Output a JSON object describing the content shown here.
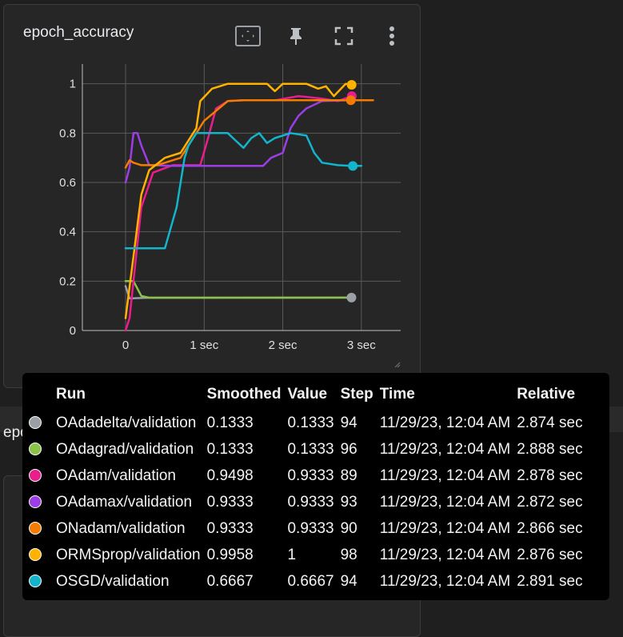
{
  "top_card": {
    "title": "epoch_accuracy",
    "tools": [
      "fit-domain-icon",
      "pin-icon",
      "fullscreen-icon",
      "more-vert-icon"
    ]
  },
  "bottom_card": {
    "title_strip": "epoch_loss",
    "title_card": "epoch_loss"
  },
  "chart_data": {
    "type": "line",
    "title": "epoch_accuracy",
    "xlabel": "",
    "ylabel": "",
    "xlim": [
      -0.55,
      3.5
    ],
    "ylim": [
      0,
      1.08
    ],
    "x_ticks": [
      0,
      1,
      2,
      3
    ],
    "x_tick_labels": [
      "0",
      "1 sec",
      "2 sec",
      "3 sec"
    ],
    "y_ticks": [
      0,
      0.2,
      0.4,
      0.6,
      0.8,
      1
    ],
    "y_tick_labels": [
      "0",
      "0.2",
      "0.4",
      "0.6",
      "0.8",
      "1"
    ],
    "grid": true,
    "series": [
      {
        "name": "OAdadelta/validation",
        "color": "#9aa0a6",
        "points": [
          [
            0,
            0.18
          ],
          [
            0.05,
            0.13
          ],
          [
            0.3,
            0.133
          ],
          [
            1,
            0.133
          ],
          [
            2,
            0.133
          ],
          [
            2.874,
            0.1333
          ]
        ]
      },
      {
        "name": "OAdagrad/validation",
        "color": "#8bc34a",
        "points": [
          [
            0,
            0.2
          ],
          [
            0.1,
            0.2
          ],
          [
            0.2,
            0.14
          ],
          [
            0.3,
            0.133
          ],
          [
            1,
            0.133
          ],
          [
            2.888,
            0.1333
          ]
        ]
      },
      {
        "name": "OAdam/validation",
        "color": "#e91e8c",
        "points": [
          [
            0,
            0.0
          ],
          [
            0.05,
            0.05
          ],
          [
            0.1,
            0.2
          ],
          [
            0.2,
            0.5
          ],
          [
            0.35,
            0.64
          ],
          [
            0.6,
            0.67
          ],
          [
            0.95,
            0.67
          ],
          [
            1.05,
            0.78
          ],
          [
            1.15,
            0.9
          ],
          [
            1.3,
            0.93
          ],
          [
            1.5,
            0.933
          ],
          [
            1.9,
            0.933
          ],
          [
            2.2,
            0.95
          ],
          [
            2.5,
            0.94
          ],
          [
            2.7,
            0.93
          ],
          [
            2.878,
            0.9498
          ]
        ]
      },
      {
        "name": "OAdamax/validation",
        "color": "#9c3de6",
        "points": [
          [
            0,
            0.6
          ],
          [
            0.05,
            0.66
          ],
          [
            0.1,
            0.8
          ],
          [
            0.15,
            0.8
          ],
          [
            0.2,
            0.75
          ],
          [
            0.3,
            0.67
          ],
          [
            0.6,
            0.667
          ],
          [
            1.0,
            0.667
          ],
          [
            1.5,
            0.667
          ],
          [
            1.75,
            0.667
          ],
          [
            1.85,
            0.7
          ],
          [
            2.0,
            0.72
          ],
          [
            2.1,
            0.82
          ],
          [
            2.2,
            0.87
          ],
          [
            2.3,
            0.9
          ],
          [
            2.5,
            0.93
          ],
          [
            2.872,
            0.9333
          ]
        ]
      },
      {
        "name": "ONadam/validation",
        "color": "#f57c00",
        "points": [
          [
            0,
            0.66
          ],
          [
            0.05,
            0.69
          ],
          [
            0.1,
            0.68
          ],
          [
            0.2,
            0.67
          ],
          [
            0.4,
            0.67
          ],
          [
            0.7,
            0.7
          ],
          [
            1.0,
            0.85
          ],
          [
            1.3,
            0.93
          ],
          [
            1.5,
            0.933
          ],
          [
            2.0,
            0.933
          ],
          [
            2.5,
            0.933
          ],
          [
            2.866,
            0.9333
          ],
          [
            3.15,
            0.933
          ]
        ]
      },
      {
        "name": "ORMSprop/validation",
        "color": "#ffb300",
        "points": [
          [
            0,
            0.05
          ],
          [
            0.1,
            0.3
          ],
          [
            0.2,
            0.55
          ],
          [
            0.3,
            0.65
          ],
          [
            0.5,
            0.7
          ],
          [
            0.7,
            0.72
          ],
          [
            0.9,
            0.82
          ],
          [
            0.95,
            0.93
          ],
          [
            1.1,
            0.98
          ],
          [
            1.3,
            1.0
          ],
          [
            1.8,
            1.0
          ],
          [
            1.9,
            0.97
          ],
          [
            2.0,
            1.0
          ],
          [
            2.3,
            1.0
          ],
          [
            2.45,
            0.98
          ],
          [
            2.55,
            0.99
          ],
          [
            2.65,
            0.95
          ],
          [
            2.8,
            1.0
          ],
          [
            2.876,
            0.9958
          ]
        ]
      },
      {
        "name": "OSGD/validation",
        "color": "#12b5cb",
        "points": [
          [
            0,
            0.333
          ],
          [
            0.5,
            0.333
          ],
          [
            0.65,
            0.5
          ],
          [
            0.75,
            0.7
          ],
          [
            0.8,
            0.75
          ],
          [
            0.9,
            0.8
          ],
          [
            1.3,
            0.8
          ],
          [
            1.4,
            0.77
          ],
          [
            1.5,
            0.74
          ],
          [
            1.6,
            0.78
          ],
          [
            1.7,
            0.8
          ],
          [
            1.8,
            0.76
          ],
          [
            1.9,
            0.78
          ],
          [
            2.1,
            0.8
          ],
          [
            2.3,
            0.79
          ],
          [
            2.4,
            0.72
          ],
          [
            2.5,
            0.68
          ],
          [
            2.7,
            0.67
          ],
          [
            2.891,
            0.6667
          ],
          [
            3.0,
            0.667
          ]
        ]
      }
    ],
    "end_markers": [
      {
        "series": "OAdadelta/validation",
        "x": 2.874,
        "y": 0.1333
      },
      {
        "series": "OAdam/validation",
        "x": 2.878,
        "y": 0.9498
      },
      {
        "series": "ONadam/validation",
        "x": 2.866,
        "y": 0.9333
      },
      {
        "series": "ORMSprop/validation",
        "x": 2.876,
        "y": 0.9958
      },
      {
        "series": "OSGD/validation",
        "x": 2.891,
        "y": 0.6667
      }
    ]
  },
  "tooltip": {
    "headers": {
      "run": "Run",
      "smoothed": "Smoothed",
      "value": "Value",
      "step": "Step",
      "time": "Time",
      "relative": "Relative"
    },
    "rows": [
      {
        "color": "#9aa0a6",
        "run": "OAdadelta/validation",
        "smoothed": "0.1333",
        "value": "0.1333",
        "step": "94",
        "time": "11/29/23, 12:04 AM",
        "relative": "2.874 sec"
      },
      {
        "color": "#8bc34a",
        "run": "OAdagrad/validation",
        "smoothed": "0.1333",
        "value": "0.1333",
        "step": "96",
        "time": "11/29/23, 12:04 AM",
        "relative": "2.888 sec"
      },
      {
        "color": "#e91e8c",
        "run": "OAdam/validation",
        "smoothed": "0.9498",
        "value": "0.9333",
        "step": "89",
        "time": "11/29/23, 12:04 AM",
        "relative": "2.878 sec"
      },
      {
        "color": "#9c3de6",
        "run": "OAdamax/validation",
        "smoothed": "0.9333",
        "value": "0.9333",
        "step": "93",
        "time": "11/29/23, 12:04 AM",
        "relative": "2.872 sec"
      },
      {
        "color": "#f57c00",
        "run": "ONadam/validation",
        "smoothed": "0.9333",
        "value": "0.9333",
        "step": "90",
        "time": "11/29/23, 12:04 AM",
        "relative": "2.866 sec"
      },
      {
        "color": "#ffb300",
        "run": "ORMSprop/validation",
        "smoothed": "0.9958",
        "value": "1",
        "step": "98",
        "time": "11/29/23, 12:04 AM",
        "relative": "2.876 sec"
      },
      {
        "color": "#12b5cb",
        "run": "OSGD/validation",
        "smoothed": "0.6667",
        "value": "0.6667",
        "step": "94",
        "time": "11/29/23, 12:04 AM",
        "relative": "2.891 sec"
      }
    ]
  }
}
